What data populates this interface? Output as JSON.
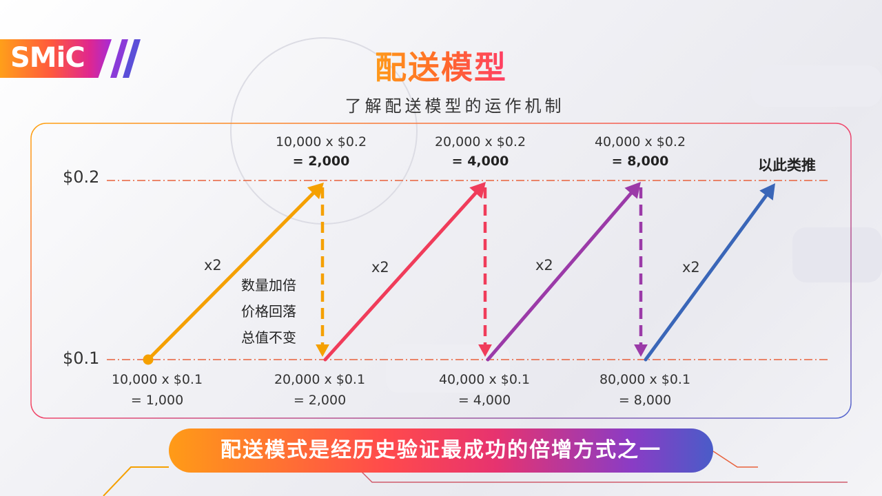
{
  "brand": {
    "logo_text": "SMiC"
  },
  "header": {
    "title": "配送模型",
    "subtitle": "了解配送模型的运作机制"
  },
  "axis": {
    "high": "$0.2",
    "low": "$0.1"
  },
  "steps": [
    {
      "bottom_line1": "10,000 x $0.1",
      "bottom_line2": "= 1,000",
      "top_line1": "10,000 x $0.2",
      "top_line2": "= 2,000",
      "multiplier": "x2",
      "color": "#f5a000"
    },
    {
      "bottom_line1": "20,000 x $0.1",
      "bottom_line2": "= 2,000",
      "top_line1": "20,000 x $0.2",
      "top_line2": "= 4,000",
      "multiplier": "x2",
      "color": "#f03c5a"
    },
    {
      "bottom_line1": "40,000 x $0.1",
      "bottom_line2": "= 4,000",
      "top_line1": "40,000 x $0.2",
      "top_line2": "= 8,000",
      "multiplier": "x2",
      "color": "#9b3aa8"
    },
    {
      "bottom_line1": "80,000 x $0.1",
      "bottom_line2": "= 8,000",
      "multiplier": "x2",
      "color": "#3a66b8"
    }
  ],
  "notes": [
    "数量加倍",
    "价格回落",
    "总值不变"
  ],
  "etc_label": "以此类推",
  "banner": "配送模式是经历史验证最成功的倍增方式之一",
  "colors": {
    "orange": "#f5a000",
    "red": "#f03c5a",
    "purple": "#9b3aa8",
    "blue": "#3a66b8",
    "guide": "#e8603a"
  }
}
